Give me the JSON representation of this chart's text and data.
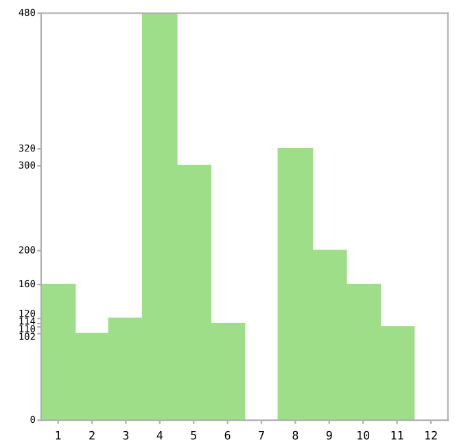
{
  "chart_data": {
    "type": "bar",
    "categories": [
      "1",
      "2",
      "3",
      "4",
      "5",
      "6",
      "7",
      "8",
      "9",
      "10",
      "11",
      "12"
    ],
    "values": [
      160,
      102,
      120,
      480,
      300,
      114,
      0,
      320,
      200,
      160,
      110,
      0
    ],
    "color": "#9ede88",
    "ylim": [
      0,
      480
    ],
    "yticks": [
      0,
      102,
      110,
      114,
      120,
      160,
      200,
      300,
      320,
      480
    ],
    "grid": false
  }
}
